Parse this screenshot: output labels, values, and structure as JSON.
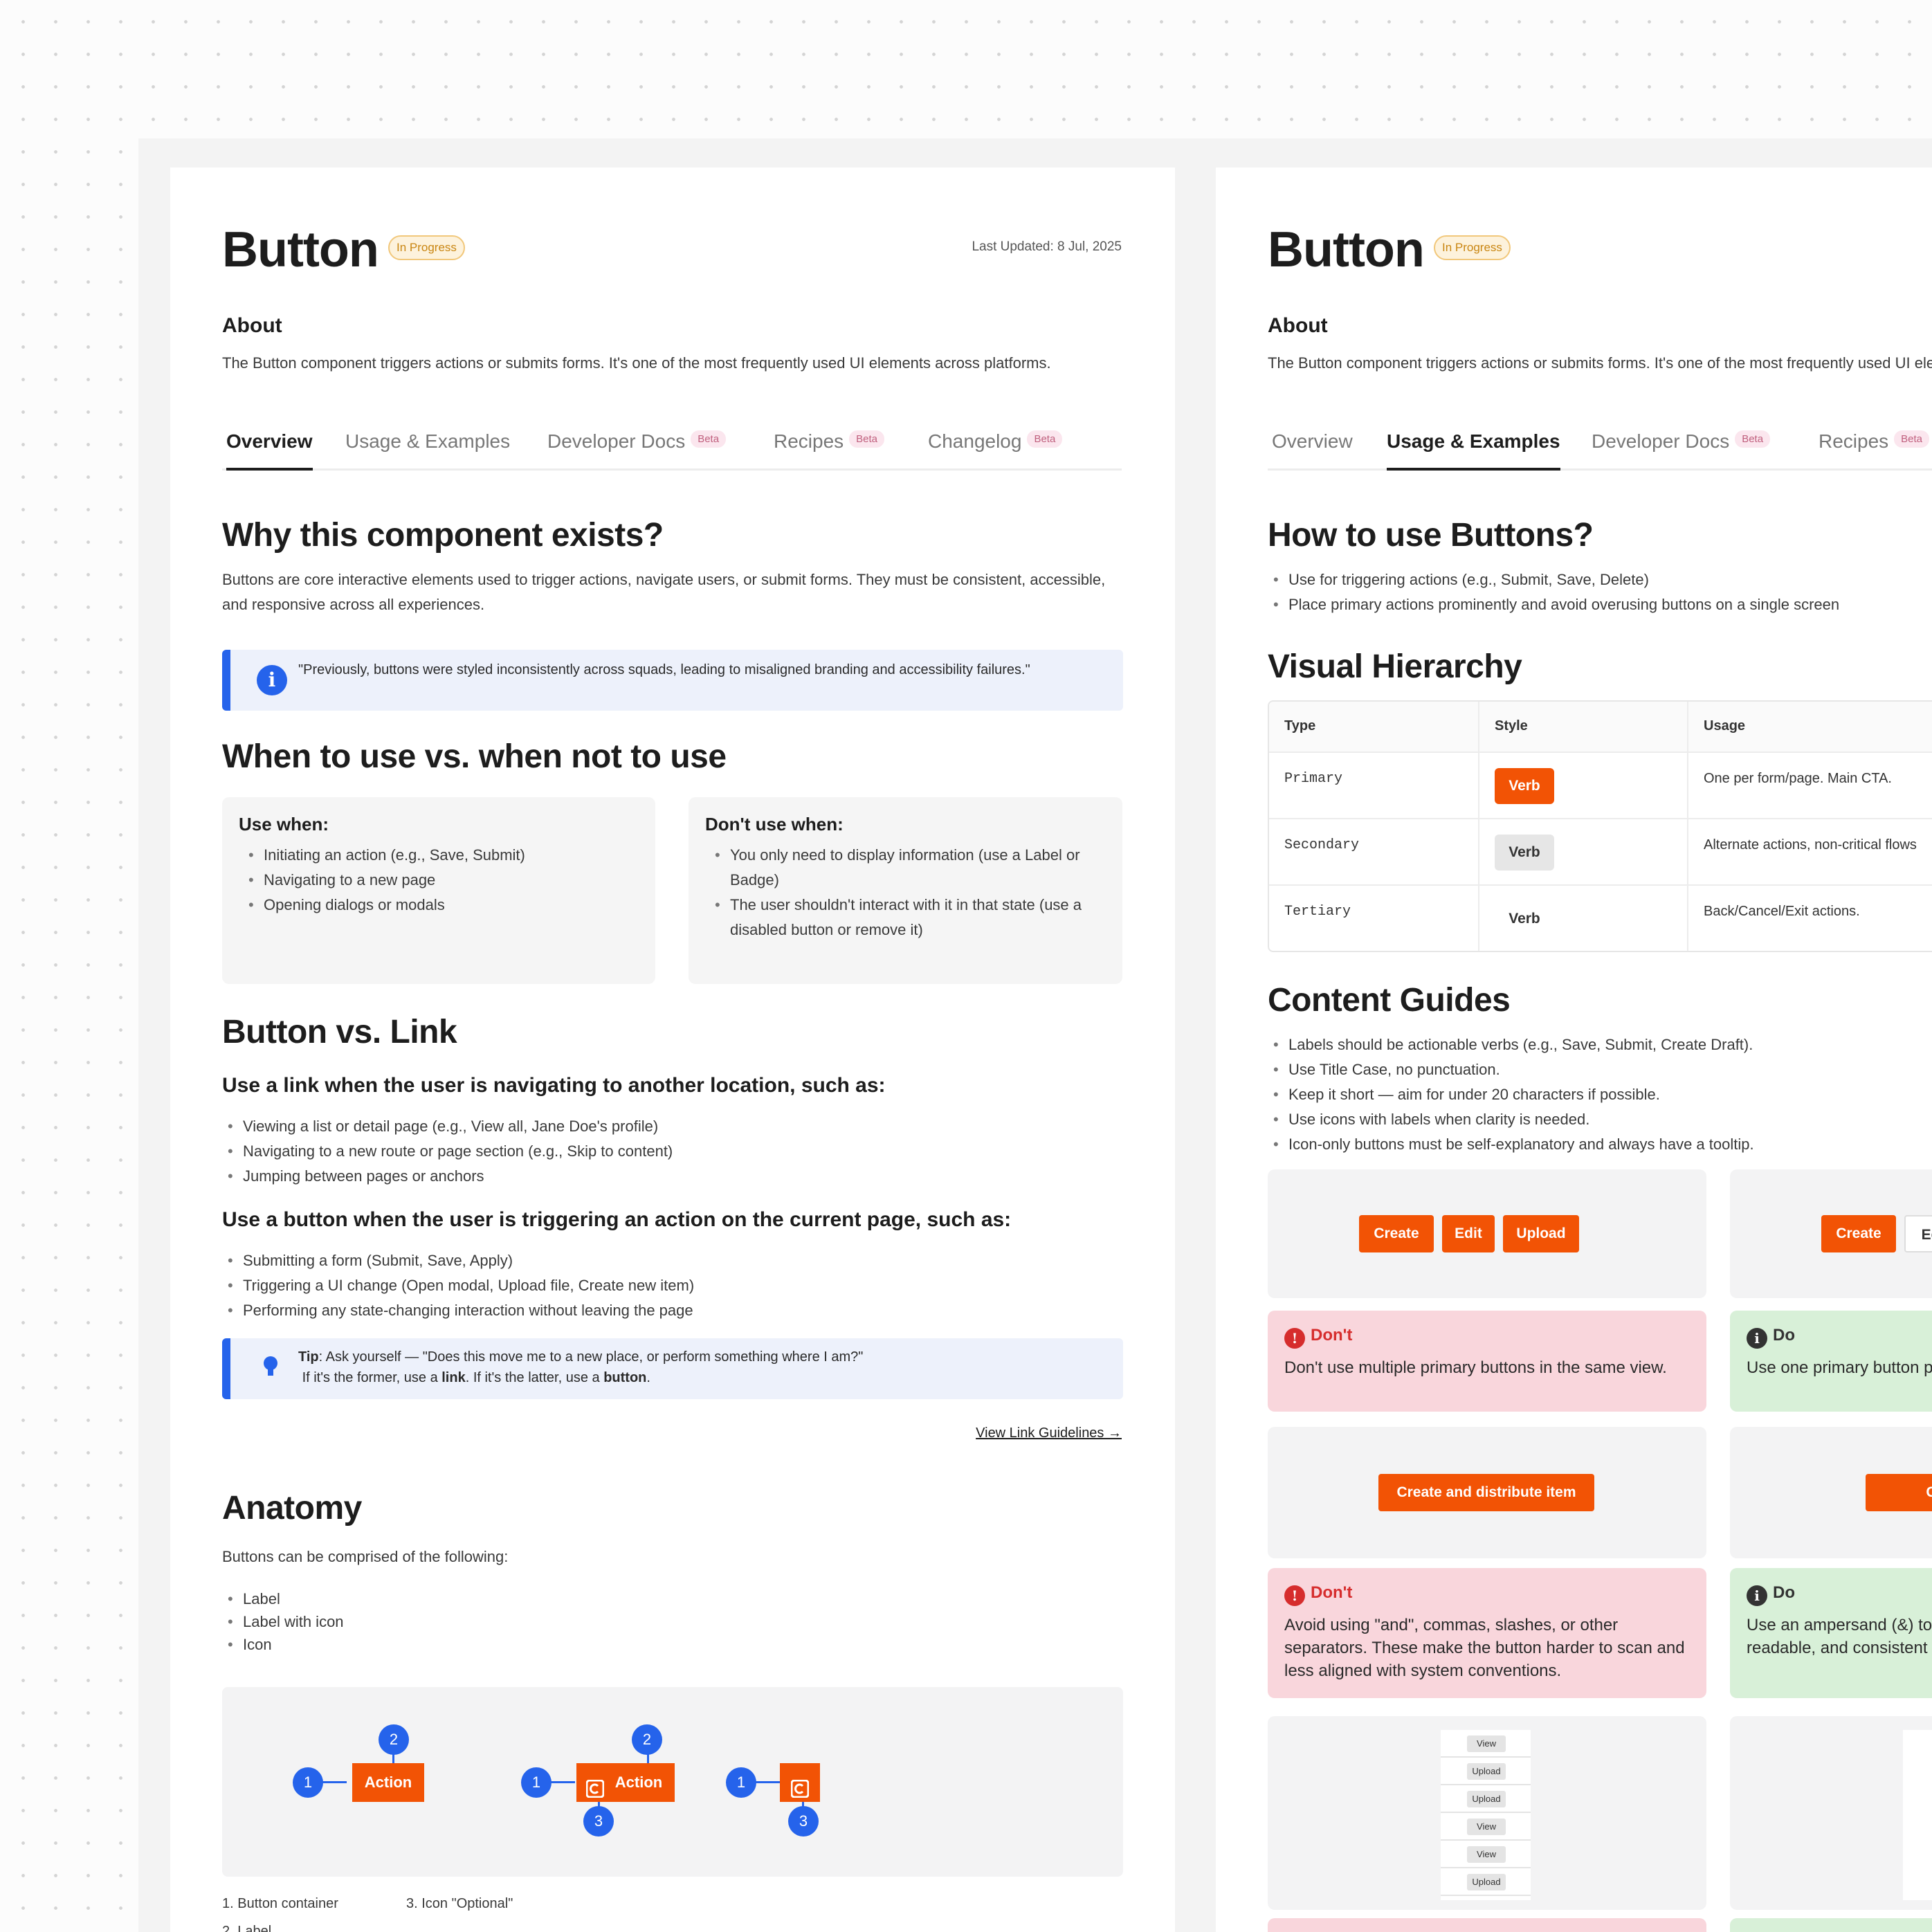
{
  "left": {
    "title": "Button",
    "status": "In Progress",
    "last_updated": "Last Updated: 8 Jul, 2025",
    "about_heading": "About",
    "about_text": "The Button component triggers actions or submits forms. It's one of the most frequently used UI elements across platforms.",
    "tabs": [
      {
        "label": "Overview",
        "beta": ""
      },
      {
        "label": "Usage & Examples",
        "beta": ""
      },
      {
        "label": "Developer Docs",
        "beta": "Beta"
      },
      {
        "label": "Recipes",
        "beta": "Beta"
      },
      {
        "label": "Changelog",
        "beta": "Beta"
      }
    ],
    "why_heading": "Why this component exists?",
    "why_text": "Buttons are core interactive elements used to trigger actions, navigate users, or submit forms. They must be consistent, accessible, and responsive across all experiences.",
    "quote": "\"Previously, buttons were styled inconsistently across squads, leading to misaligned branding and accessibility failures.\"",
    "when_heading": "When to use vs. when not to use",
    "use_when_heading": "Use when:",
    "use_when": [
      "Initiating an action (e.g., Save, Submit)",
      "Navigating to a new page",
      "Opening dialogs or modals"
    ],
    "dont_use_heading": "Don't use when:",
    "dont_use": [
      "You only need to display information (use a Label or Badge)",
      "The user shouldn't interact with it in that state (use a disabled button or remove it)"
    ],
    "vs_heading": "Button vs. Link",
    "link_sub": "Use a link when the user is navigating to another location, such as:",
    "link_items": [
      "Viewing a list or detail page (e.g., View all, Jane Doe's profile)",
      "Navigating to a new route or page section (e.g., Skip to content)",
      "Jumping between pages or anchors"
    ],
    "button_sub": "Use a button when the user is triggering an action on the current page, such as:",
    "button_items": [
      "Submitting a form (Submit, Save, Apply)",
      "Triggering a UI change (Open modal, Upload file, Create new item)",
      "Performing any state-changing interaction without leaving the page"
    ],
    "tip_label": "Tip",
    "tip_line1": ": Ask yourself — \"Does this move me to a new place, or perform something where I am?\"",
    "tip_line2a": "If it's the former, use a ",
    "tip_link_word": "link",
    "tip_line2b": ". If it's the latter, use a ",
    "tip_button_word": "button",
    "tip_end": ".",
    "view_link": "View Link Guidelines →",
    "anatomy_heading": "Anatomy",
    "anatomy_text": "Buttons can be comprised of the following:",
    "anatomy_items": [
      "Label",
      "Label with icon",
      "Icon"
    ],
    "anatomy_btn_label": "Action",
    "anatomy_markers": [
      "1",
      "2",
      "3"
    ],
    "anatomy_legend": [
      "1. Button container",
      "2. Label",
      "3. Icon \"Optional\""
    ]
  },
  "right": {
    "title": "Button",
    "status": "In Progress",
    "about_heading": "About",
    "about_text": "The Button component triggers actions or submits forms. It's one of the most frequently used UI elements across platforms.",
    "tabs": [
      {
        "label": "Overview",
        "beta": ""
      },
      {
        "label": "Usage & Examples",
        "beta": ""
      },
      {
        "label": "Developer Docs",
        "beta": "Beta"
      },
      {
        "label": "Recipes",
        "beta": "Beta"
      }
    ],
    "how_heading": "How to use Buttons?",
    "how_items": [
      "Use for triggering actions (e.g., Submit, Save, Delete)",
      "Place primary actions prominently and avoid overusing buttons on a single screen"
    ],
    "hier_heading": "Visual Hierarchy",
    "table_headers": [
      "Type",
      "Style",
      "Usage"
    ],
    "table_rows": [
      {
        "type": "Primary",
        "verb": "Verb",
        "usage": "One per form/page. Main CTA."
      },
      {
        "type": "Secondary",
        "verb": "Verb",
        "usage": "Alternate actions, non-critical flows"
      },
      {
        "type": "Tertiary",
        "verb": "Verb",
        "usage": "Back/Cancel/Exit actions."
      }
    ],
    "content_heading": "Content Guides",
    "content_items": [
      "Labels should be actionable verbs (e.g., Save, Submit, Create Draft).",
      "Use Title Case, no punctuation.",
      "Keep it short — aim for under 20 characters if possible.",
      "Use icons with labels when clarity is needed.",
      "Icon-only buttons must be self-explanatory and always have a tooltip."
    ],
    "ex1_buttons": [
      "Create",
      "Edit",
      "Upload"
    ],
    "ex1b_buttons": [
      "Create",
      "Ed"
    ],
    "dont_label": "Don't",
    "do_label": "Do",
    "dont1": "Don't use multiple primary buttons in the same view.",
    "do1": "Use one primary button per action.",
    "ex2_button": "Create and distribute item",
    "ex2b_button": "Create",
    "dont2": "Avoid using \"and\", commas, slashes, or other separators. These make the button harder to scan and less aligned with system conventions.",
    "do2": "Use an ampersand (&) to single button label. This readable, and consistent",
    "mini_list": [
      "View",
      "Upload",
      "Upload",
      "View",
      "View",
      "Upload"
    ]
  },
  "colors": {
    "accent": "#f25305",
    "info": "#2563eb",
    "dont_bg": "#f9d6dc",
    "do_bg": "#d8f0d8"
  }
}
